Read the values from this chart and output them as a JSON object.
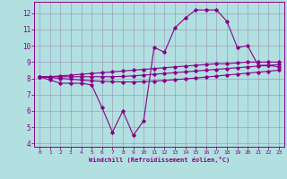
{
  "xlabel": "Windchill (Refroidissement éolien,°C)",
  "background_color": "#b2e0e0",
  "line_color": "#880088",
  "grid_color": "#9999bb",
  "xlim": [
    -0.5,
    23.5
  ],
  "ylim": [
    3.8,
    12.7
  ],
  "yticks": [
    4,
    5,
    6,
    7,
    8,
    9,
    10,
    11,
    12
  ],
  "xticks": [
    0,
    1,
    2,
    3,
    4,
    5,
    6,
    7,
    8,
    9,
    10,
    11,
    12,
    13,
    14,
    15,
    16,
    17,
    18,
    19,
    20,
    21,
    22,
    23
  ],
  "series1_x": [
    0,
    1,
    2,
    3,
    4,
    5,
    6,
    7,
    8,
    9,
    10,
    11,
    12,
    13,
    14,
    15,
    16,
    17,
    18,
    19,
    20,
    21,
    22,
    23
  ],
  "series1_y": [
    8.1,
    7.9,
    7.7,
    7.7,
    7.7,
    7.6,
    6.2,
    4.7,
    6.0,
    4.5,
    5.4,
    9.9,
    9.6,
    11.1,
    11.7,
    12.2,
    12.2,
    12.2,
    11.5,
    9.9,
    10.0,
    8.8,
    8.8,
    8.7
  ],
  "series2_x": [
    0,
    1,
    2,
    3,
    4,
    5,
    6,
    7,
    8,
    9,
    10,
    11,
    12,
    13,
    14,
    15,
    16,
    17,
    18,
    19,
    20,
    21,
    22,
    23
  ],
  "series2_y": [
    8.1,
    8.1,
    8.15,
    8.2,
    8.25,
    8.3,
    8.35,
    8.4,
    8.45,
    8.5,
    8.55,
    8.6,
    8.65,
    8.7,
    8.75,
    8.8,
    8.85,
    8.9,
    8.9,
    8.95,
    9.0,
    9.0,
    9.0,
    9.0
  ],
  "series3_x": [
    0,
    1,
    2,
    3,
    4,
    5,
    6,
    7,
    8,
    9,
    10,
    11,
    12,
    13,
    14,
    15,
    16,
    17,
    18,
    19,
    20,
    21,
    22,
    23
  ],
  "series3_y": [
    8.1,
    8.05,
    8.0,
    7.95,
    7.9,
    7.85,
    7.82,
    7.8,
    7.78,
    7.78,
    7.8,
    7.83,
    7.87,
    7.92,
    7.97,
    8.02,
    8.08,
    8.14,
    8.2,
    8.26,
    8.32,
    8.38,
    8.44,
    8.5
  ],
  "series4_x": [
    0,
    1,
    2,
    3,
    4,
    5,
    6,
    7,
    8,
    9,
    10,
    11,
    12,
    13,
    14,
    15,
    16,
    17,
    18,
    19,
    20,
    21,
    22,
    23
  ],
  "series4_y": [
    8.1,
    8.1,
    8.1,
    8.1,
    8.1,
    8.1,
    8.1,
    8.1,
    8.12,
    8.15,
    8.2,
    8.25,
    8.3,
    8.35,
    8.4,
    8.45,
    8.5,
    8.55,
    8.6,
    8.65,
    8.7,
    8.75,
    8.8,
    8.85
  ]
}
